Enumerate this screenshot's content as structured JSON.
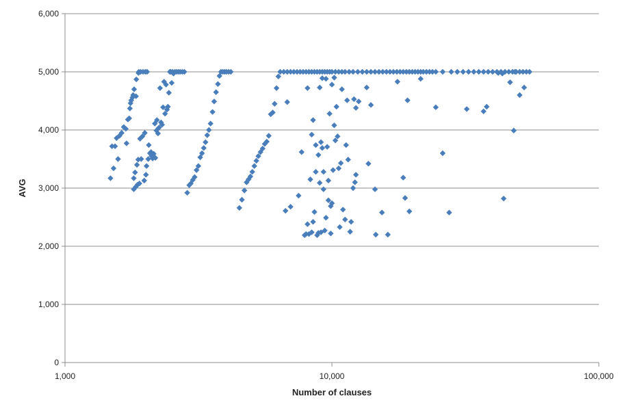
{
  "chart_data": {
    "type": "scatter",
    "title": "",
    "xlabel": "Number of clauses",
    "ylabel": "AVG",
    "xscale": "log",
    "xlim": [
      1000,
      100000
    ],
    "ylim": [
      0,
      6000
    ],
    "x_ticks": [
      1000,
      10000,
      100000
    ],
    "x_tick_labels": [
      "1,000",
      "10,000",
      "100,000"
    ],
    "y_ticks": [
      0,
      1000,
      2000,
      3000,
      4000,
      5000,
      6000
    ],
    "y_tick_labels": [
      "0",
      "1,000",
      "2,000",
      "3,000",
      "4,000",
      "5,000",
      "6,000"
    ],
    "grid": "horizontal",
    "marker_color": "#4a7ebb",
    "marker": "diamond",
    "points": [
      [
        1480,
        3170
      ],
      [
        1500,
        3720
      ],
      [
        1520,
        3340
      ],
      [
        1540,
        3720
      ],
      [
        1560,
        3860
      ],
      [
        1580,
        3500
      ],
      [
        1600,
        3900
      ],
      [
        1630,
        3950
      ],
      [
        1660,
        4050
      ],
      [
        1690,
        4020
      ],
      [
        1700,
        3770
      ],
      [
        1720,
        4180
      ],
      [
        1740,
        4200
      ],
      [
        1750,
        4370
      ],
      [
        1760,
        4460
      ],
      [
        1770,
        4510
      ],
      [
        1790,
        4560
      ],
      [
        1800,
        4600
      ],
      [
        1810,
        3170
      ],
      [
        1810,
        2980
      ],
      [
        1815,
        4700
      ],
      [
        1830,
        3270
      ],
      [
        1840,
        3020
      ],
      [
        1845,
        4580
      ],
      [
        1850,
        4870
      ],
      [
        1860,
        3400
      ],
      [
        1870,
        3060
      ],
      [
        1880,
        3490
      ],
      [
        1885,
        4980
      ],
      [
        1890,
        5000
      ],
      [
        1900,
        3080
      ],
      [
        1910,
        3850
      ],
      [
        1920,
        5000
      ],
      [
        1930,
        3500
      ],
      [
        1950,
        3890
      ],
      [
        1960,
        5000
      ],
      [
        1980,
        3130
      ],
      [
        1990,
        3950
      ],
      [
        2000,
        5000
      ],
      [
        2010,
        3230
      ],
      [
        2020,
        3380
      ],
      [
        2030,
        5000
      ],
      [
        2050,
        3500
      ],
      [
        2060,
        3740
      ],
      [
        2080,
        3600
      ],
      [
        2100,
        3620
      ],
      [
        2110,
        3550
      ],
      [
        2130,
        3510
      ],
      [
        2150,
        3590
      ],
      [
        2170,
        4110
      ],
      [
        2180,
        3520
      ],
      [
        2200,
        3990
      ],
      [
        2210,
        4170
      ],
      [
        2230,
        3940
      ],
      [
        2250,
        4040
      ],
      [
        2270,
        4720
      ],
      [
        2290,
        4130
      ],
      [
        2310,
        4090
      ],
      [
        2330,
        4390
      ],
      [
        2350,
        4830
      ],
      [
        2370,
        4280
      ],
      [
        2390,
        4780
      ],
      [
        2410,
        4350
      ],
      [
        2430,
        4400
      ],
      [
        2450,
        4640
      ],
      [
        2470,
        5000
      ],
      [
        2490,
        5000
      ],
      [
        2510,
        4810
      ],
      [
        2530,
        5000
      ],
      [
        2550,
        4970
      ],
      [
        2580,
        5000
      ],
      [
        2620,
        5000
      ],
      [
        2660,
        5000
      ],
      [
        2700,
        5000
      ],
      [
        2750,
        5000
      ],
      [
        2800,
        5000
      ],
      [
        2870,
        2920
      ],
      [
        2920,
        3050
      ],
      [
        2960,
        3080
      ],
      [
        3010,
        3140
      ],
      [
        3060,
        3190
      ],
      [
        3110,
        3310
      ],
      [
        3160,
        3380
      ],
      [
        3210,
        3530
      ],
      [
        3260,
        3600
      ],
      [
        3310,
        3690
      ],
      [
        3360,
        3790
      ],
      [
        3410,
        3910
      ],
      [
        3460,
        4000
      ],
      [
        3510,
        4110
      ],
      [
        3570,
        4310
      ],
      [
        3620,
        4490
      ],
      [
        3680,
        4650
      ],
      [
        3740,
        4790
      ],
      [
        3790,
        4930
      ],
      [
        3840,
        5000
      ],
      [
        3900,
        5000
      ],
      [
        3960,
        5000
      ],
      [
        4020,
        5000
      ],
      [
        4100,
        5000
      ],
      [
        4180,
        5000
      ],
      [
        4500,
        2660
      ],
      [
        4600,
        2800
      ],
      [
        4700,
        2960
      ],
      [
        4790,
        3100
      ],
      [
        4870,
        3150
      ],
      [
        4950,
        3200
      ],
      [
        5030,
        3280
      ],
      [
        5120,
        3380
      ],
      [
        5210,
        3470
      ],
      [
        5300,
        3550
      ],
      [
        5400,
        3620
      ],
      [
        5500,
        3680
      ],
      [
        5600,
        3760
      ],
      [
        5700,
        3800
      ],
      [
        5800,
        3900
      ],
      [
        5900,
        4270
      ],
      [
        6000,
        4300
      ],
      [
        6100,
        4450
      ],
      [
        6200,
        4720
      ],
      [
        6300,
        4920
      ],
      [
        6400,
        5000
      ],
      [
        6600,
        5000
      ],
      [
        6800,
        5000
      ],
      [
        7000,
        5000
      ],
      [
        7200,
        5000
      ],
      [
        7400,
        5000
      ],
      [
        7600,
        5000
      ],
      [
        7800,
        5000
      ],
      [
        8000,
        5000
      ],
      [
        8200,
        5000
      ],
      [
        8400,
        5000
      ],
      [
        8600,
        5000
      ],
      [
        8800,
        5000
      ],
      [
        9000,
        5000
      ],
      [
        9200,
        5000
      ],
      [
        9400,
        5000
      ],
      [
        9600,
        5000
      ],
      [
        9800,
        5000
      ],
      [
        10000,
        5000
      ],
      [
        10300,
        5000
      ],
      [
        10600,
        5000
      ],
      [
        10900,
        5000
      ],
      [
        11200,
        5000
      ],
      [
        11600,
        5000
      ],
      [
        12000,
        5000
      ],
      [
        12500,
        5000
      ],
      [
        13000,
        5000
      ],
      [
        13500,
        5000
      ],
      [
        14000,
        5000
      ],
      [
        14500,
        5000
      ],
      [
        15000,
        5000
      ],
      [
        15500,
        5000
      ],
      [
        16000,
        5000
      ],
      [
        16500,
        5000
      ],
      [
        17000,
        5000
      ],
      [
        17500,
        5000
      ],
      [
        18000,
        5000
      ],
      [
        18500,
        5000
      ],
      [
        19000,
        5000
      ],
      [
        19500,
        5000
      ],
      [
        20000,
        5000
      ],
      [
        20500,
        5000
      ],
      [
        21000,
        5000
      ],
      [
        21500,
        5000
      ],
      [
        22000,
        5000
      ],
      [
        22600,
        5000
      ],
      [
        23200,
        5000
      ],
      [
        23800,
        5000
      ],
      [
        24500,
        5000
      ],
      [
        26000,
        5000
      ],
      [
        28000,
        5000
      ],
      [
        29500,
        5000
      ],
      [
        31000,
        5000
      ],
      [
        32500,
        5000
      ],
      [
        34000,
        5000
      ],
      [
        35500,
        5000
      ],
      [
        37000,
        5000
      ],
      [
        38500,
        5000
      ],
      [
        40000,
        5000
      ],
      [
        41500,
        5000
      ],
      [
        43000,
        5000
      ],
      [
        44500,
        5000
      ],
      [
        46000,
        5000
      ],
      [
        47500,
        5000
      ],
      [
        49000,
        5000
      ],
      [
        50500,
        5000
      ],
      [
        52000,
        5000
      ],
      [
        53500,
        5000
      ],
      [
        55000,
        5000
      ],
      [
        6800,
        4480
      ],
      [
        6700,
        2610
      ],
      [
        7000,
        2680
      ],
      [
        7500,
        2870
      ],
      [
        7700,
        3620
      ],
      [
        7900,
        2190
      ],
      [
        8000,
        2210
      ],
      [
        8100,
        2380
      ],
      [
        8100,
        4720
      ],
      [
        8200,
        2210
      ],
      [
        8300,
        3150
      ],
      [
        8400,
        3920
      ],
      [
        8400,
        2240
      ],
      [
        8500,
        4170
      ],
      [
        8500,
        2420
      ],
      [
        8600,
        2590
      ],
      [
        8700,
        3740
      ],
      [
        8700,
        3280
      ],
      [
        8800,
        2190
      ],
      [
        8900,
        3570
      ],
      [
        8900,
        2230
      ],
      [
        9000,
        3090
      ],
      [
        9000,
        4730
      ],
      [
        9100,
        3790
      ],
      [
        9100,
        2240
      ],
      [
        9200,
        3690
      ],
      [
        9200,
        4890
      ],
      [
        9300,
        2980
      ],
      [
        9300,
        3280
      ],
      [
        9400,
        2270
      ],
      [
        9500,
        2490
      ],
      [
        9500,
        4880
      ],
      [
        9600,
        3710
      ],
      [
        9700,
        3130
      ],
      [
        9700,
        2790
      ],
      [
        9800,
        4280
      ],
      [
        9900,
        2690
      ],
      [
        9900,
        2220
      ],
      [
        10000,
        2740
      ],
      [
        10000,
        4780
      ],
      [
        10100,
        3310
      ],
      [
        10200,
        4080
      ],
      [
        10200,
        4900
      ],
      [
        10300,
        3820
      ],
      [
        10400,
        4400
      ],
      [
        10500,
        3890
      ],
      [
        10600,
        3340
      ],
      [
        10700,
        2330
      ],
      [
        10800,
        3430
      ],
      [
        10900,
        4700
      ],
      [
        11000,
        2630
      ],
      [
        11200,
        2460
      ],
      [
        11300,
        3740
      ],
      [
        11400,
        4510
      ],
      [
        11500,
        3490
      ],
      [
        11700,
        2250
      ],
      [
        11800,
        2420
      ],
      [
        12000,
        3000
      ],
      [
        12100,
        4530
      ],
      [
        12200,
        3100
      ],
      [
        12300,
        3230
      ],
      [
        12300,
        4380
      ],
      [
        12600,
        4490
      ],
      [
        13500,
        4730
      ],
      [
        13700,
        3420
      ],
      [
        14000,
        4430
      ],
      [
        14500,
        2980
      ],
      [
        14600,
        2200
      ],
      [
        15400,
        2580
      ],
      [
        16200,
        2200
      ],
      [
        17600,
        4830
      ],
      [
        18500,
        3180
      ],
      [
        18800,
        2830
      ],
      [
        19200,
        4510
      ],
      [
        19500,
        2600
      ],
      [
        21500,
        4880
      ],
      [
        24500,
        4390
      ],
      [
        26000,
        3600
      ],
      [
        27500,
        2580
      ],
      [
        32000,
        4360
      ],
      [
        37000,
        4320
      ],
      [
        38000,
        4400
      ],
      [
        42000,
        4980
      ],
      [
        44000,
        2820
      ],
      [
        46500,
        4820
      ],
      [
        48000,
        3990
      ],
      [
        50500,
        4600
      ],
      [
        52500,
        4730
      ],
      [
        48500,
        5000
      ],
      [
        43500,
        4970
      ]
    ]
  }
}
